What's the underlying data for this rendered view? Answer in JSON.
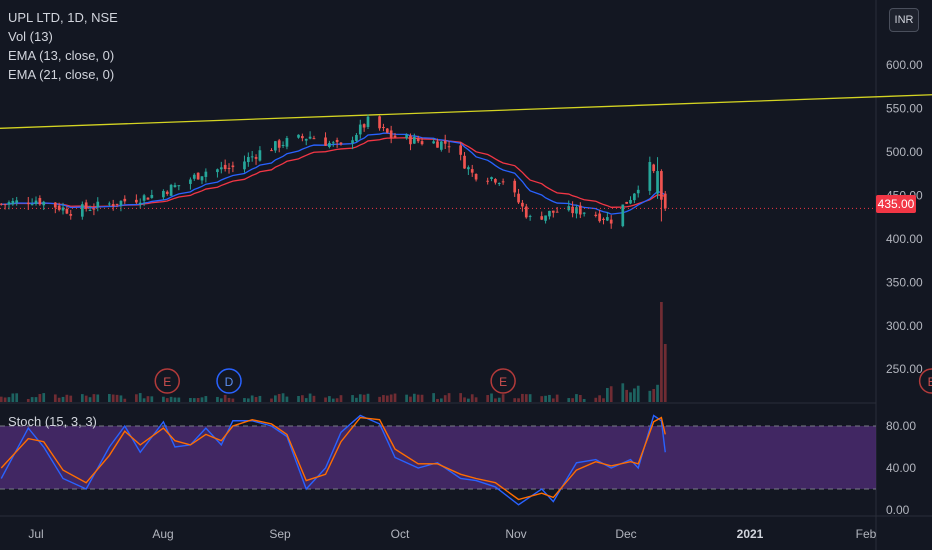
{
  "legend": {
    "title": "UPL LTD, 1D, NSE",
    "vol": "Vol (13)",
    "ema13": "EMA (13, close, 0)",
    "ema21": "EMA (21, close, 0)"
  },
  "currency_button": "INR",
  "stoch_label": "Stoch (15, 3, 3)",
  "colors": {
    "background": "#131722",
    "up": "#26a69a",
    "down": "#ef5350",
    "ema13": "#2962ff",
    "ema21": "#f23645",
    "trendline": "#d4d422",
    "stoch_k": "#2962ff",
    "stoch_d": "#ff6d00",
    "stoch_band": "#4a2a6e"
  },
  "chart_data": [
    {
      "type": "candlestick",
      "title": "UPL LTD, 1D, NSE",
      "y_ticks": [
        "600.00",
        "550.00",
        "500.00",
        "450.00",
        "400.00",
        "350.00",
        "300.00",
        "250.00"
      ],
      "ylim": [
        215,
        622
      ],
      "x_ticks": [
        "Jul",
        "Aug",
        "Sep",
        "Oct",
        "Nov",
        "Dec",
        "2021",
        "Feb"
      ],
      "last_price": 435.0,
      "last_price_label": "435.00",
      "trendline": {
        "from": [
          "2020-06-08",
          525
        ],
        "to": [
          "2021-02-26",
          567
        ]
      },
      "earnings_markers": [
        {
          "date": "2020-08-04",
          "label": "E"
        },
        {
          "date": "2020-08-20",
          "label": "D"
        },
        {
          "date": "2020-10-30",
          "label": "E"
        },
        {
          "date": "2021-02-18",
          "label": "E"
        }
      ],
      "close_anchors": [
        [
          "2020-06-22",
          440
        ],
        [
          "2020-07-01",
          445
        ],
        [
          "2020-07-10",
          432
        ],
        [
          "2020-07-20",
          440
        ],
        [
          "2020-07-31",
          450
        ],
        [
          "2020-08-07",
          462
        ],
        [
          "2020-08-14",
          478
        ],
        [
          "2020-08-21",
          482
        ],
        [
          "2020-08-28",
          500
        ],
        [
          "2020-09-04",
          512
        ],
        [
          "2020-09-10",
          518
        ],
        [
          "2020-09-18",
          505
        ],
        [
          "2020-09-25",
          535
        ],
        [
          "2020-10-01",
          518
        ],
        [
          "2020-10-09",
          512
        ],
        [
          "2020-10-16",
          510
        ],
        [
          "2020-10-22",
          475
        ],
        [
          "2020-10-30",
          468
        ],
        [
          "2020-11-06",
          423
        ],
        [
          "2020-11-13",
          432
        ],
        [
          "2020-11-20",
          432
        ],
        [
          "2020-11-27",
          422
        ],
        [
          "2020-12-02",
          448
        ],
        [
          "2020-12-07",
          483
        ],
        [
          "2020-12-09",
          468
        ],
        [
          "2020-12-11",
          435
        ]
      ],
      "volume_note": "largest volume bars on 2020-12-10 and 2020-12-11"
    },
    {
      "type": "line",
      "title": "Stoch (15, 3, 3)",
      "y_ticks": [
        "80.00",
        "40.00",
        "0.00"
      ],
      "ylim": [
        -5,
        100
      ],
      "band": [
        20,
        80
      ],
      "series": [
        {
          "values_by_date": [
            [
              "2020-06-22",
              30
            ],
            [
              "2020-06-29",
              78
            ],
            [
              "2020-07-03",
              60
            ],
            [
              "2020-07-08",
              30
            ],
            [
              "2020-07-14",
              20
            ],
            [
              "2020-07-20",
              60
            ],
            [
              "2020-07-24",
              80
            ],
            [
              "2020-07-28",
              55
            ],
            [
              "2020-08-03",
              84
            ],
            [
              "2020-08-06",
              60
            ],
            [
              "2020-08-10",
              62
            ],
            [
              "2020-08-14",
              78
            ],
            [
              "2020-08-18",
              62
            ],
            [
              "2020-08-21",
              85
            ],
            [
              "2020-08-26",
              85
            ],
            [
              "2020-08-31",
              80
            ],
            [
              "2020-09-04",
              70
            ],
            [
              "2020-09-09",
              20
            ],
            [
              "2020-09-14",
              40
            ],
            [
              "2020-09-18",
              74
            ],
            [
              "2020-09-23",
              90
            ],
            [
              "2020-09-28",
              82
            ],
            [
              "2020-10-02",
              50
            ],
            [
              "2020-10-08",
              40
            ],
            [
              "2020-10-13",
              45
            ],
            [
              "2020-10-19",
              30
            ],
            [
              "2020-10-23",
              28
            ],
            [
              "2020-10-28",
              22
            ],
            [
              "2020-11-03",
              5
            ],
            [
              "2020-11-09",
              20
            ],
            [
              "2020-11-12",
              8
            ],
            [
              "2020-11-18",
              45
            ],
            [
              "2020-11-23",
              48
            ],
            [
              "2020-11-27",
              40
            ],
            [
              "2020-12-02",
              48
            ],
            [
              "2020-12-04",
              40
            ],
            [
              "2020-12-08",
              90
            ],
            [
              "2020-12-10",
              85
            ],
            [
              "2020-12-11",
              55
            ]
          ]
        },
        {
          "values_by_date": [
            [
              "2020-06-22",
              40
            ],
            [
              "2020-06-29",
              68
            ],
            [
              "2020-07-03",
              65
            ],
            [
              "2020-07-08",
              38
            ],
            [
              "2020-07-14",
              26
            ],
            [
              "2020-07-20",
              52
            ],
            [
              "2020-07-24",
              75
            ],
            [
              "2020-07-28",
              62
            ],
            [
              "2020-08-03",
              78
            ],
            [
              "2020-08-06",
              66
            ],
            [
              "2020-08-10",
              62
            ],
            [
              "2020-08-14",
              72
            ],
            [
              "2020-08-18",
              66
            ],
            [
              "2020-08-21",
              80
            ],
            [
              "2020-08-26",
              86
            ],
            [
              "2020-08-31",
              82
            ],
            [
              "2020-09-04",
              72
            ],
            [
              "2020-09-09",
              28
            ],
            [
              "2020-09-14",
              34
            ],
            [
              "2020-09-18",
              65
            ],
            [
              "2020-09-23",
              88
            ],
            [
              "2020-09-28",
              86
            ],
            [
              "2020-10-02",
              58
            ],
            [
              "2020-10-08",
              44
            ],
            [
              "2020-10-13",
              44
            ],
            [
              "2020-10-19",
              34
            ],
            [
              "2020-10-23",
              30
            ],
            [
              "2020-10-28",
              26
            ],
            [
              "2020-11-03",
              10
            ],
            [
              "2020-11-09",
              16
            ],
            [
              "2020-11-12",
              12
            ],
            [
              "2020-11-18",
              38
            ],
            [
              "2020-11-23",
              46
            ],
            [
              "2020-11-27",
              42
            ],
            [
              "2020-12-02",
              46
            ],
            [
              "2020-12-04",
              44
            ],
            [
              "2020-12-08",
              84
            ],
            [
              "2020-12-10",
              88
            ],
            [
              "2020-12-11",
              72
            ]
          ]
        }
      ]
    }
  ]
}
